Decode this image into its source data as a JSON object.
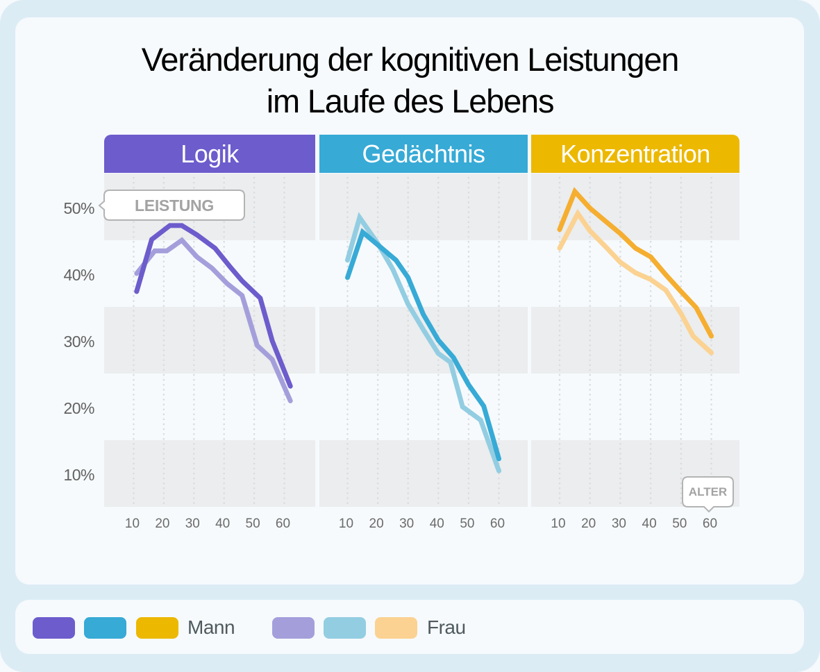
{
  "title": {
    "line1": "Veränderung der kognitiven Leistungen",
    "line2": "im Laufe des Lebens"
  },
  "tags": {
    "y_axis": "LEISTUNG",
    "x_axis": "ALTER"
  },
  "legend": {
    "mann_label": "Mann",
    "frau_label": "Frau",
    "mann_colors": [
      "#6c5ccc",
      "#37aad6",
      "#ecb800"
    ],
    "frau_colors": [
      "#a49fdb",
      "#93cde2",
      "#fbd291"
    ]
  },
  "chart_data": {
    "type": "line",
    "title": "Veränderung der kognitiven Leistungen im Laufe des Lebens",
    "xlabel": "ALTER",
    "ylabel": "LEISTUNG",
    "ylim": [
      5,
      55
    ],
    "xlim": [
      10,
      60
    ],
    "y_ticks": [
      "50%",
      "40%",
      "30%",
      "20%",
      "10%"
    ],
    "y_tick_values": [
      50,
      40,
      30,
      20,
      10
    ],
    "x_ticks": [
      "10",
      "20",
      "30",
      "40",
      "50",
      "60"
    ],
    "x_tick_values": [
      10,
      20,
      30,
      40,
      50,
      60
    ],
    "grid": true,
    "legend_position": "bottom-left",
    "panels": [
      {
        "name": "Logik",
        "header_color": "#6c5ccc",
        "series": [
          {
            "name": "Mann",
            "color": "#6c5ccc",
            "x": [
              11,
              16,
              22,
              26,
              31,
              37,
              42,
              46,
              52,
              56,
              62
            ],
            "values": [
              37.3,
              45.1,
              47.2,
              47.2,
              45.8,
              43.8,
              41.0,
              38.9,
              36.3,
              29.9,
              23.1
            ]
          },
          {
            "name": "Frau",
            "color": "#a49fdb",
            "x": [
              11,
              17,
              21,
              26,
              31,
              36,
              41,
              46,
              51,
              56,
              62
            ],
            "values": [
              40.0,
              43.4,
              43.4,
              45.0,
              42.5,
              40.8,
              38.5,
              36.7,
              29.2,
              27.1,
              20.9
            ]
          }
        ]
      },
      {
        "name": "Gedächtnis",
        "header_color": "#37aad6",
        "series": [
          {
            "name": "Mann",
            "color": "#37aad6",
            "x": [
              10,
              15,
              20,
              26,
              30,
              35,
              40,
              45,
              50,
              55,
              60
            ],
            "values": [
              39.4,
              46.2,
              44.3,
              42.0,
              39.4,
              33.9,
              30.0,
              27.4,
              23.3,
              20.1,
              12.2
            ]
          },
          {
            "name": "Frau",
            "color": "#93cde2",
            "x": [
              10,
              14,
              20,
              25,
              30,
              35,
              40,
              44,
              48,
              54,
              60
            ],
            "values": [
              42.0,
              48.4,
              44.5,
              40.6,
              35.4,
              31.6,
              28.0,
              26.7,
              20.0,
              18.0,
              10.4
            ]
          }
        ]
      },
      {
        "name": "Konzentration",
        "header_color": "#ecb800",
        "series": [
          {
            "name": "Mann",
            "color": "#f5ae30",
            "x": [
              10,
              15,
              20,
              25,
              30,
              35,
              40,
              45,
              50,
              55,
              60
            ],
            "values": [
              46.6,
              52.3,
              49.8,
              47.9,
              46.0,
              43.8,
              42.5,
              39.8,
              37.3,
              34.9,
              30.6
            ]
          },
          {
            "name": "Frau",
            "color": "#fbd291",
            "x": [
              10,
              16,
              20,
              25,
              30,
              35,
              40,
              45,
              50,
              54,
              60
            ],
            "values": [
              43.8,
              49.0,
              46.4,
              44.1,
              41.7,
              40.1,
              39.1,
              37.5,
              34.0,
              30.6,
              28.1
            ]
          }
        ]
      }
    ]
  }
}
